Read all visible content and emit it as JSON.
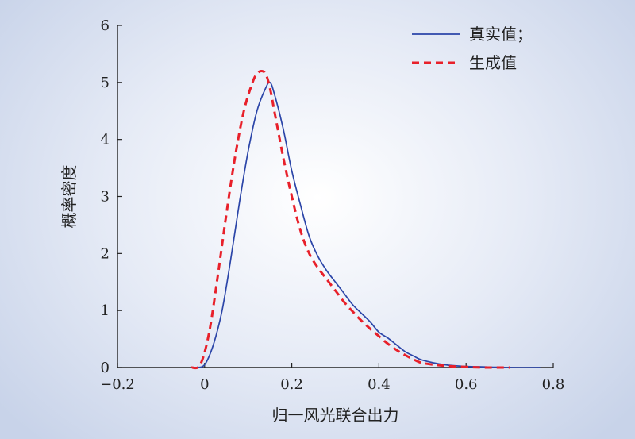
{
  "chart_data": {
    "type": "line",
    "xlabel": "归一风光联合出力",
    "ylabel": "概率密度",
    "xlim": [
      -0.2,
      0.8
    ],
    "ylim": [
      0,
      6
    ],
    "x_ticks": [
      "−0.2",
      "0",
      "0.2",
      "0.4",
      "0.6",
      "0.8"
    ],
    "y_ticks": [
      "0",
      "1",
      "2",
      "3",
      "4",
      "5",
      "6"
    ],
    "grid": false,
    "legend": "top-right",
    "series": [
      {
        "name": "真实值；",
        "color": "#2b45a8",
        "style": "solid",
        "x": [
          -0.02,
          0.0,
          0.02,
          0.04,
          0.06,
          0.08,
          0.1,
          0.12,
          0.14,
          0.15,
          0.16,
          0.18,
          0.2,
          0.22,
          0.24,
          0.26,
          0.28,
          0.3,
          0.32,
          0.34,
          0.36,
          0.38,
          0.4,
          0.42,
          0.44,
          0.46,
          0.48,
          0.5,
          0.55,
          0.6,
          0.65,
          0.7,
          0.77
        ],
        "y": [
          0,
          0.05,
          0.4,
          1.0,
          1.9,
          2.9,
          3.8,
          4.5,
          4.9,
          5.0,
          4.8,
          4.2,
          3.45,
          2.85,
          2.3,
          1.95,
          1.7,
          1.5,
          1.3,
          1.1,
          0.95,
          0.8,
          0.62,
          0.52,
          0.4,
          0.28,
          0.2,
          0.13,
          0.05,
          0.02,
          0.01,
          0.0,
          0.0
        ]
      },
      {
        "name": "生成值",
        "color": "#e8202a",
        "style": "dashed",
        "x": [
          -0.03,
          -0.01,
          0.01,
          0.03,
          0.05,
          0.07,
          0.09,
          0.11,
          0.12,
          0.13,
          0.14,
          0.15,
          0.16,
          0.18,
          0.2,
          0.22,
          0.24,
          0.26,
          0.28,
          0.3,
          0.32,
          0.34,
          0.36,
          0.38,
          0.4,
          0.42,
          0.44,
          0.46,
          0.48,
          0.5,
          0.55,
          0.6,
          0.65,
          0.7
        ],
        "y": [
          0,
          0.05,
          0.6,
          1.6,
          2.7,
          3.7,
          4.5,
          5.0,
          5.15,
          5.2,
          5.15,
          4.9,
          4.5,
          3.7,
          3.0,
          2.4,
          2.0,
          1.75,
          1.55,
          1.35,
          1.15,
          0.98,
          0.82,
          0.68,
          0.55,
          0.42,
          0.31,
          0.22,
          0.14,
          0.08,
          0.03,
          0.01,
          0.0,
          0.0
        ]
      }
    ]
  }
}
